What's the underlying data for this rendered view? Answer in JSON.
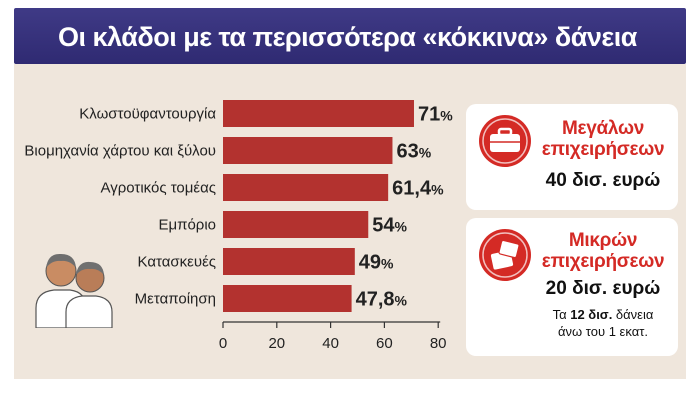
{
  "header": {
    "title": "Οι κλάδοι με τα περισσότερα «κόκκινα» δάνεια"
  },
  "cards": {
    "large": {
      "heading_line1": "Μεγάλων",
      "heading_line2": "επιχειρήσεων",
      "amount": "40 δισ. ευρώ",
      "icon": "briefcase-icon"
    },
    "small": {
      "heading_line1": "Μικρών",
      "heading_line2": "επιχειρήσεων",
      "amount": "20 δισ. ευρώ",
      "note_prefix": "Τα ",
      "note_bold": "12 δισ.",
      "note_suffix": " δάνεια",
      "note_line2": "άνω του 1 εκατ.",
      "icon": "stacked-boxes-icon"
    }
  },
  "chart_data": {
    "type": "bar",
    "orientation": "horizontal",
    "categories": [
      "Κλωστοϋφαντουργία",
      "Βιομηχανία χάρτου και ξύλου",
      "Αγροτικός τομέας",
      "Εμπόριο",
      "Κατασκευές",
      "Μεταποίηση"
    ],
    "values": [
      71,
      63,
      61.4,
      54,
      49,
      47.8
    ],
    "value_labels": [
      "71",
      "63",
      "61,4",
      "54",
      "49",
      "47,8"
    ],
    "value_suffix": "%",
    "xlim": [
      0,
      80
    ],
    "xticks": [
      0,
      20,
      40,
      60,
      80
    ],
    "bar_color": "#b3322f",
    "grid": false
  }
}
